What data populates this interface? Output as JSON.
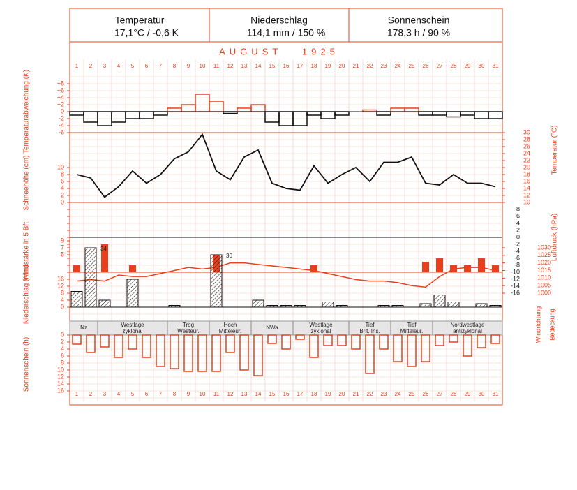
{
  "header": {
    "cells": [
      {
        "title": "Temperatur",
        "value": "17,1°C / -0,6 K"
      },
      {
        "title": "Niederschlag",
        "value": "114,1 mm / 150 %"
      },
      {
        "title": "Sonnenschein",
        "value": "178,3 h / 90 %"
      }
    ]
  },
  "month": "AUGUST   1925",
  "days": [
    1,
    2,
    3,
    4,
    5,
    6,
    7,
    8,
    9,
    10,
    11,
    12,
    13,
    14,
    15,
    16,
    17,
    18,
    19,
    20,
    21,
    22,
    23,
    24,
    25,
    26,
    27,
    28,
    29,
    30,
    31
  ],
  "chart_data": [
    {
      "type": "step",
      "ylabel": "Temperaturabweichung (K)",
      "ylim": [
        -6,
        8
      ],
      "yticks": [
        -6,
        -4,
        -2,
        0,
        {
          "value": 2,
          "label": "+2"
        },
        {
          "value": 4,
          "label": "+4"
        },
        {
          "value": 6,
          "label": "+6"
        },
        {
          "value": 8,
          "label": "+8"
        }
      ],
      "pos_color": "#e8401c",
      "neg_color": "#111111",
      "values": [
        -1,
        -3,
        -4,
        -3,
        -2,
        -2,
        -1,
        1,
        2,
        5,
        3,
        -0.5,
        1,
        2,
        -3,
        -4,
        -4,
        -1,
        -2,
        -1,
        0,
        0.5,
        -1,
        1,
        1,
        -1,
        -1,
        -1.5,
        -1,
        -2,
        -2
      ]
    },
    {
      "type": "line",
      "ylabel": "Schneehöhe (cm)",
      "ylim": [
        0,
        20
      ],
      "yticks": [
        0,
        2,
        4,
        6,
        8,
        10
      ],
      "y2label": "Temperatur (°C)",
      "y2lim": [
        10,
        30
      ],
      "y2ticks": [
        10,
        12,
        14,
        16,
        18,
        20,
        22,
        24,
        26,
        28,
        30
      ],
      "series": [
        {
          "name": "Temperatur",
          "color": "#111111",
          "axis": "y2",
          "values": [
            18,
            17,
            11.5,
            14.5,
            19,
            15.5,
            18,
            22.5,
            24.5,
            29.5,
            19,
            16.5,
            23,
            25,
            15.5,
            14,
            13.5,
            20.5,
            15.5,
            18,
            20,
            16,
            21.5,
            21.5,
            23,
            15.5,
            15,
            18,
            15.5,
            15.5,
            14.5
          ]
        }
      ]
    },
    {
      "type": "bar-line",
      "ylabel": "Windstärke in 5 Bft",
      "ylim": [
        0,
        9
      ],
      "yticks": [
        5,
        7,
        9
      ],
      "y2label": "Luftdruck (hPa)",
      "y2lim": [
        1000,
        1030
      ],
      "y2ticks": [
        1000,
        1005,
        1010,
        1015,
        1020,
        1025,
        1030
      ],
      "y3lim": [
        -16,
        8
      ],
      "y3ticks": [
        -16,
        -14,
        -12,
        -10,
        -8,
        -6,
        -4,
        -2,
        0,
        2,
        4,
        6,
        8
      ],
      "series": [
        {
          "name": "Windstärke",
          "color": "#e8401c",
          "values": [
            2,
            null,
            8,
            null,
            2,
            null,
            null,
            null,
            null,
            null,
            5,
            null,
            null,
            null,
            null,
            null,
            null,
            2,
            null,
            null,
            null,
            null,
            null,
            null,
            null,
            3,
            4,
            2,
            2,
            4,
            2
          ]
        },
        {
          "name": "Luftdruck",
          "color": "#e8401c",
          "axis": "y2",
          "values": [
            1008,
            1009,
            1008,
            1012,
            1011,
            1011,
            1013,
            1015,
            1017,
            1016,
            1017,
            1020,
            1020,
            1019,
            1018,
            1017,
            1016,
            1015,
            1013,
            1011,
            1009,
            1008,
            1008,
            1007,
            1005,
            1004,
            1011,
            1016,
            1017,
            1017,
            1015
          ]
        }
      ]
    },
    {
      "type": "bar",
      "ylabel": "Niederschlag (mm)",
      "ylim": [
        0,
        16
      ],
      "yticks": [
        0,
        4,
        8,
        12,
        16
      ],
      "values": [
        9,
        34,
        4,
        0,
        16,
        0,
        0,
        1,
        0,
        0,
        30,
        0,
        0,
        4,
        1,
        1,
        1,
        0,
        3,
        1,
        0,
        0,
        1,
        1,
        0,
        2,
        7,
        3,
        0,
        2,
        1
      ],
      "value_labels": [
        null,
        "34",
        null,
        null,
        null,
        null,
        null,
        null,
        null,
        null,
        "30",
        null,
        null,
        null,
        null,
        null,
        null,
        null,
        null,
        null,
        null,
        null,
        null,
        null,
        null,
        null,
        null,
        null,
        null,
        null,
        null
      ]
    },
    {
      "type": "periods",
      "periods": [
        {
          "lines": [
            "Nz"
          ],
          "from": 1,
          "to": 2
        },
        {
          "lines": [
            "Westlage",
            "zyklonal"
          ],
          "from": 3,
          "to": 7
        },
        {
          "lines": [
            "Trog",
            "Westeur."
          ],
          "from": 8,
          "to": 10
        },
        {
          "lines": [
            "Hoch",
            "Mitteleur."
          ],
          "from": 11,
          "to": 13
        },
        {
          "lines": [
            "NWa"
          ],
          "from": 14,
          "to": 16
        },
        {
          "lines": [
            "Westlage",
            "zyklonal"
          ],
          "from": 17,
          "to": 20
        },
        {
          "lines": [
            "Tief",
            "Brit. Ins."
          ],
          "from": 21,
          "to": 23
        },
        {
          "lines": [
            "Tief",
            "Mitteleur."
          ],
          "from": 24,
          "to": 26
        },
        {
          "lines": [
            "Nordwestlage",
            "antizyklonal"
          ],
          "from": 27,
          "to": 31
        }
      ],
      "labels": [
        "Windrichtung",
        "Bedeckung"
      ]
    },
    {
      "type": "bar-down",
      "ylabel": "Sonnenschein (h)",
      "ylim": [
        0,
        16
      ],
      "yticks": [
        0,
        2,
        4,
        6,
        8,
        10,
        12,
        14,
        16
      ],
      "color": "#e8401c",
      "values": [
        2.6,
        5,
        3.4,
        6.4,
        4,
        6.4,
        9,
        9.6,
        10.4,
        10.4,
        10.4,
        5,
        10,
        11.6,
        2.4,
        4,
        1.2,
        6.4,
        3,
        3,
        4,
        11,
        4,
        7.6,
        9,
        7.6,
        3,
        2,
        6,
        3.6,
        2.4
      ]
    }
  ]
}
